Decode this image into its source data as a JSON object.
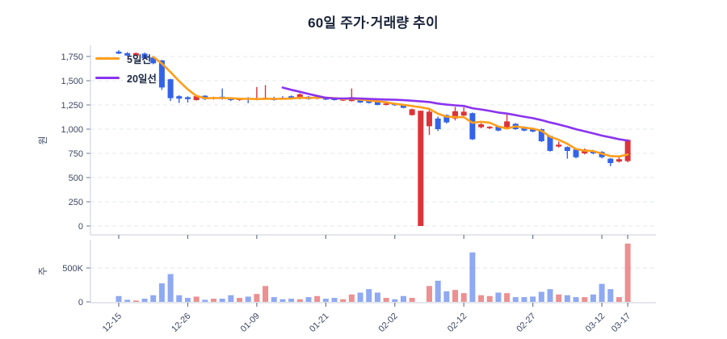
{
  "colors": {
    "up": "#dc3439",
    "down": "#3363e8",
    "ma5": "#ff9e1b",
    "ma20": "#8a33f0",
    "grid": "#e4e7ed",
    "axis": "#c8cdd8",
    "tick": "#6b7590",
    "axis_text": "#3d4763",
    "title_text": "#192339"
  },
  "chart_data": {
    "type": "candlestick+volume",
    "title": "60일 주가·거래량 추이",
    "legend": [
      "5일선",
      "20일선"
    ],
    "price_axis": {
      "label": "원",
      "ticks": [
        {
          "v": 0,
          "label": "0"
        },
        {
          "v": 250,
          "label": "250"
        },
        {
          "v": 500,
          "label": "500"
        },
        {
          "v": 750,
          "label": "750"
        },
        {
          "v": 1000,
          "label": "1,000"
        },
        {
          "v": 1250,
          "label": "1,250"
        },
        {
          "v": 1500,
          "label": "1,500"
        },
        {
          "v": 1750,
          "label": "1,750"
        }
      ],
      "range": [
        0,
        1870
      ]
    },
    "volume_axis": {
      "label": "주",
      "ticks": [
        {
          "v": 0,
          "label": "0"
        },
        {
          "v": 500,
          "label": "500K"
        }
      ],
      "unit": "K"
    },
    "x_ticks": [
      {
        "i": 0,
        "label": "12-15"
      },
      {
        "i": 8,
        "label": "12-26"
      },
      {
        "i": 16,
        "label": "01-09"
      },
      {
        "i": 24,
        "label": "01-21"
      },
      {
        "i": 32,
        "label": "02-02"
      },
      {
        "i": 40,
        "label": "02-12"
      },
      {
        "i": 48,
        "label": "02-27"
      },
      {
        "i": 56,
        "label": "03-12"
      },
      {
        "i": 59,
        "label": "03-17"
      }
    ],
    "candles_ohlc": [
      [
        1800,
        1815,
        1775,
        1780
      ],
      [
        1785,
        1795,
        1755,
        1760
      ],
      [
        1760,
        1790,
        1755,
        1785
      ],
      [
        1780,
        1790,
        1725,
        1730
      ],
      [
        1740,
        1750,
        1670,
        1680
      ],
      [
        1710,
        1715,
        1405,
        1430
      ],
      [
        1515,
        1520,
        1290,
        1320
      ],
      [
        1340,
        1350,
        1270,
        1315
      ],
      [
        1330,
        1340,
        1275,
        1310
      ],
      [
        1300,
        1350,
        1295,
        1340
      ],
      [
        1345,
        1350,
        1300,
        1310
      ],
      [
        1315,
        1335,
        1305,
        1330
      ],
      [
        1335,
        1420,
        1305,
        1315
      ],
      [
        1320,
        1330,
        1290,
        1300
      ],
      [
        1300,
        1320,
        1292,
        1315
      ],
      [
        1320,
        1330,
        1268,
        1305
      ],
      [
        1305,
        1435,
        1298,
        1320
      ],
      [
        1310,
        1455,
        1302,
        1325
      ],
      [
        1320,
        1335,
        1295,
        1300
      ],
      [
        1325,
        1340,
        1308,
        1315
      ],
      [
        1340,
        1348,
        1315,
        1320
      ],
      [
        1315,
        1370,
        1308,
        1360
      ],
      [
        1335,
        1342,
        1305,
        1310
      ],
      [
        1315,
        1338,
        1308,
        1330
      ],
      [
        1325,
        1332,
        1300,
        1305
      ],
      [
        1315,
        1322,
        1295,
        1300
      ],
      [
        1295,
        1318,
        1290,
        1310
      ],
      [
        1290,
        1420,
        1285,
        1330
      ],
      [
        1305,
        1315,
        1270,
        1275
      ],
      [
        1300,
        1307,
        1265,
        1270
      ],
      [
        1280,
        1287,
        1245,
        1250
      ],
      [
        1250,
        1282,
        1245,
        1265
      ],
      [
        1260,
        1266,
        1240,
        1248
      ],
      [
        1250,
        1256,
        1215,
        1220
      ],
      [
        1145,
        1212,
        1140,
        1205
      ],
      [
        0,
        1190,
        0,
        1190
      ],
      [
        1030,
        1200,
        940,
        1180
      ],
      [
        1110,
        1130,
        980,
        1000
      ],
      [
        1145,
        1152,
        1058,
        1070
      ],
      [
        1110,
        1230,
        1090,
        1185
      ],
      [
        1140,
        1225,
        1135,
        1180
      ],
      [
        1165,
        1172,
        888,
        895
      ],
      [
        1020,
        1062,
        1008,
        1050
      ],
      [
        1010,
        1032,
        1000,
        1025
      ],
      [
        1025,
        1032,
        978,
        985
      ],
      [
        1000,
        1165,
        995,
        1080
      ],
      [
        1055,
        1062,
        993,
        1000
      ],
      [
        1025,
        1030,
        978,
        985
      ],
      [
        1008,
        1016,
        968,
        975
      ],
      [
        1000,
        1006,
        868,
        875
      ],
      [
        930,
        936,
        768,
        775
      ],
      [
        820,
        870,
        810,
        840
      ],
      [
        815,
        822,
        695,
        775
      ],
      [
        790,
        800,
        698,
        710
      ],
      [
        750,
        800,
        740,
        790
      ],
      [
        775,
        786,
        740,
        750
      ],
      [
        765,
        772,
        698,
        710
      ],
      [
        695,
        702,
        618,
        650
      ],
      [
        665,
        725,
        655,
        690
      ],
      [
        670,
        895,
        658,
        890
      ]
    ],
    "day_colors": [
      "b",
      "b",
      "r",
      "b",
      "b",
      "b",
      "b",
      "b",
      "b",
      "r",
      "b",
      "r",
      "b",
      "b",
      "r",
      "b",
      "r",
      "r",
      "b",
      "b",
      "b",
      "r",
      "b",
      "r",
      "b",
      "b",
      "r",
      "r",
      "b",
      "b",
      "b",
      "r",
      "b",
      "b",
      "r",
      "r",
      "r",
      "b",
      "b",
      "r",
      "r",
      "b",
      "r",
      "r",
      "b",
      "r",
      "b",
      "b",
      "b",
      "b",
      "b",
      "r",
      "b",
      "b",
      "r",
      "b",
      "b",
      "b",
      "r",
      "r"
    ],
    "volumes_k": [
      86,
      31,
      20,
      47,
      98,
      273,
      410,
      98,
      59,
      78,
      31,
      47,
      47,
      98,
      59,
      78,
      117,
      234,
      70,
      39,
      47,
      39,
      70,
      86,
      47,
      59,
      39,
      109,
      137,
      188,
      137,
      59,
      39,
      86,
      59,
      0,
      234,
      312,
      156,
      176,
      129,
      730,
      98,
      86,
      137,
      129,
      70,
      70,
      78,
      148,
      188,
      109,
      98,
      70,
      70,
      109,
      266,
      188,
      70,
      860
    ],
    "ma5": {
      "start_index": 4,
      "values": [
        1747,
        1677,
        1589,
        1495,
        1411,
        1343,
        1319,
        1321,
        1321,
        1319,
        1314,
        1313,
        1311,
        1313,
        1313,
        1313,
        1316,
        1324,
        1321,
        1327,
        1325,
        1321,
        1311,
        1315,
        1304,
        1297,
        1287,
        1278,
        1262,
        1251,
        1238,
        1226,
        1209,
        1159,
        1129,
        1125,
        1123,
        1066,
        1076,
        1067,
        1027,
        1007,
        1028,
        1015,
        1005,
        983,
        922,
        890,
        848,
        795,
        778,
        773,
        747,
        722,
        718,
        738
      ]
    },
    "ma20": {
      "start_index": 19,
      "values": [
        1429,
        1406,
        1386,
        1363,
        1343,
        1324,
        1317,
        1317,
        1318,
        1316,
        1312,
        1309,
        1306,
        1303,
        1299,
        1293,
        1287,
        1280,
        1264,
        1253,
        1246,
        1239,
        1216,
        1203,
        1188,
        1172,
        1161,
        1145,
        1128,
        1113,
        1093,
        1069,
        1048,
        1025,
        999,
        978,
        956,
        933,
        915,
        896,
        882
      ]
    }
  }
}
